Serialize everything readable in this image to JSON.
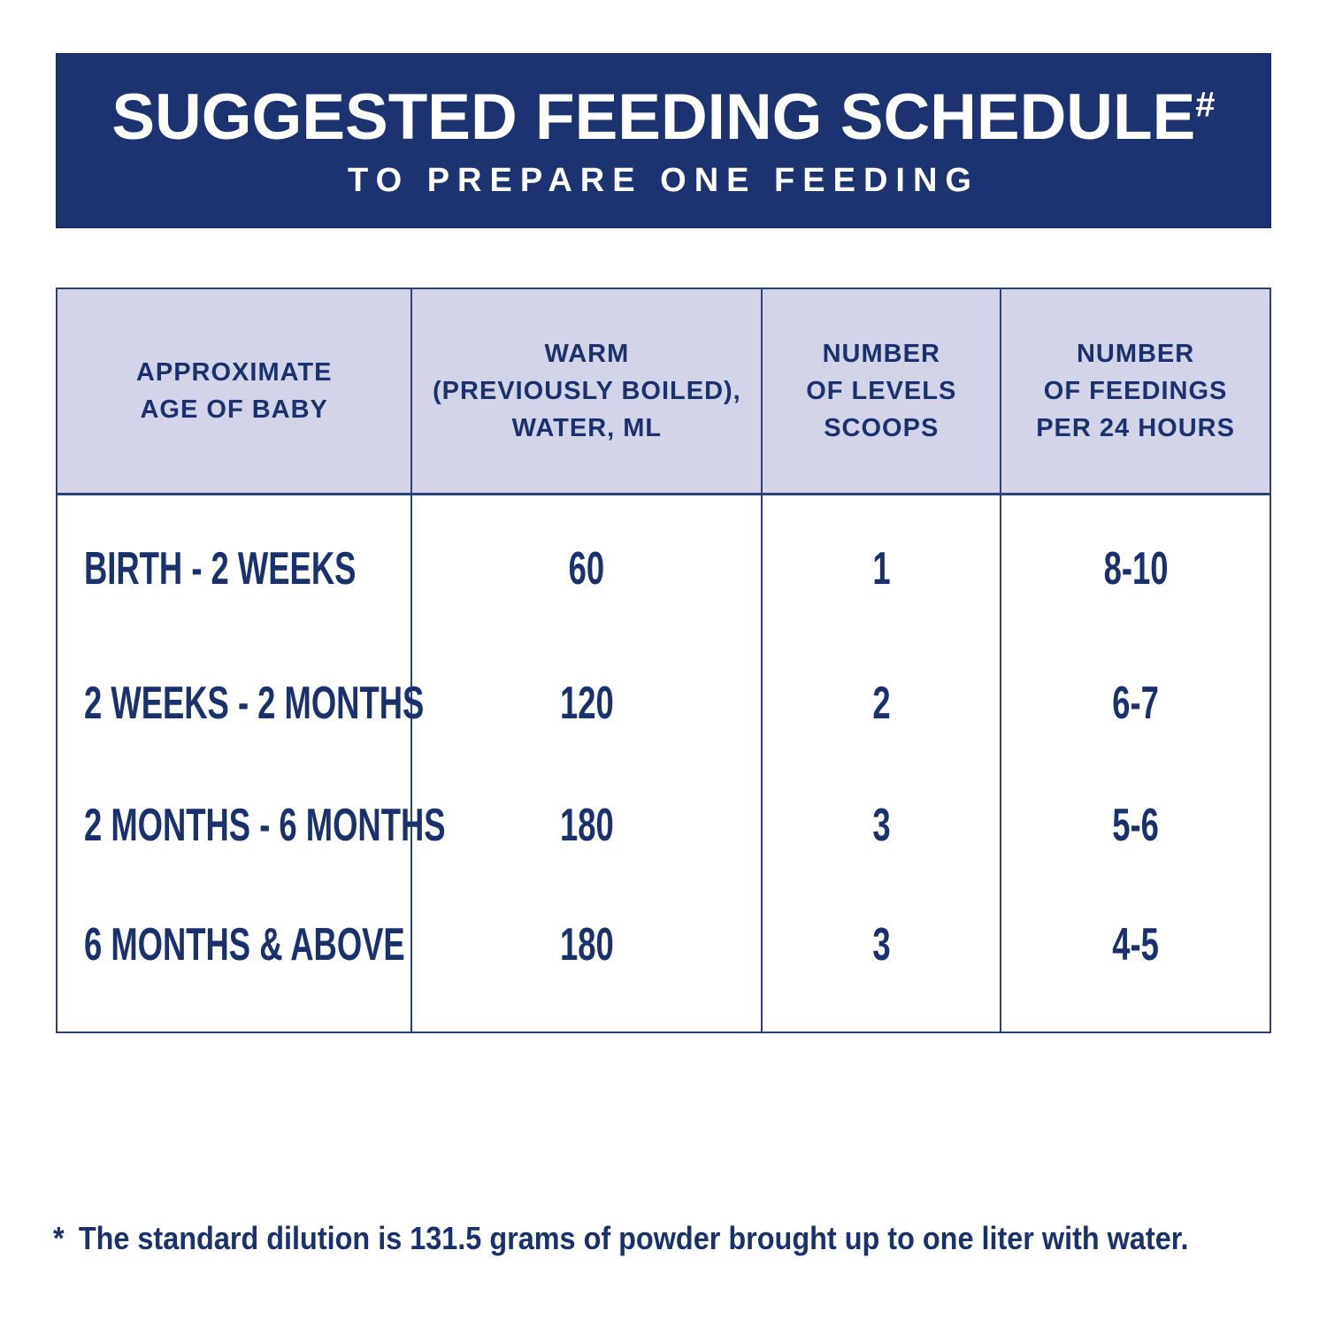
{
  "banner": {
    "title": "SUGGESTED FEEDING SCHEDULE",
    "title_sup": "#",
    "subtitle": "TO PREPARE ONE FEEDING"
  },
  "table": {
    "headers": [
      {
        "label": "APPROXIMATE\nAGE OF BABY"
      },
      {
        "label": "WARM\n(PREVIOUSLY BOILED),\nWATER, ML"
      },
      {
        "label": "NUMBER\nOF LEVELS\nSCOOPS"
      },
      {
        "label": "NUMBER\nOF FEEDINGS\nPER 24 HOURS"
      }
    ],
    "rows": [
      {
        "age": "BIRTH - 2 WEEKS",
        "water_ml": "60",
        "scoops": "1",
        "feedings_per_24h": "8-10"
      },
      {
        "age": "2 WEEKS - 2 MONTHS",
        "water_ml": "120",
        "scoops": "2",
        "feedings_per_24h": "6-7"
      },
      {
        "age": "2 MONTHS - 6 MONTHS",
        "water_ml": "180",
        "scoops": "3",
        "feedings_per_24h": "5-6"
      },
      {
        "age": "6 MONTHS & ABOVE",
        "water_ml": "180",
        "scoops": "3",
        "feedings_per_24h": "4-5"
      }
    ]
  },
  "footnote": {
    "marker": "*",
    "text": "The standard dilution is 131.5 grams of powder brought up to one liter with water."
  },
  "colors": {
    "banner_bg": "#1c3271",
    "header_bg": "#d4d4e8",
    "text_navy": "#1b316d",
    "border_navy": "#2c4273",
    "banner_text": "#ffffff"
  }
}
